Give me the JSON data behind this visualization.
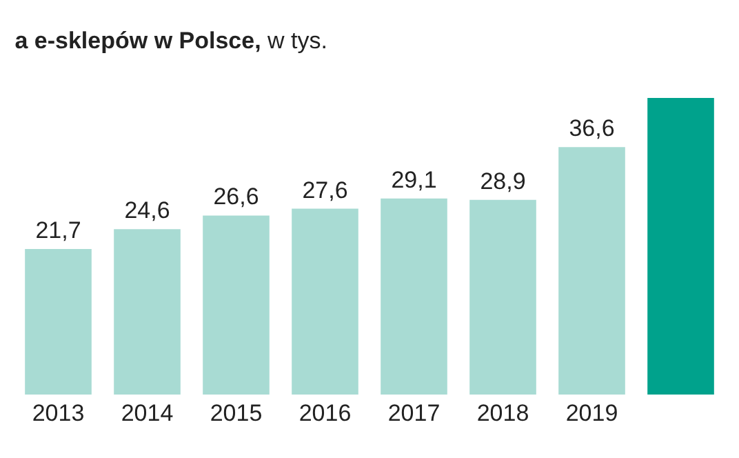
{
  "chart_data": {
    "type": "bar",
    "title": "a e-sklepów w Polsce,",
    "subtitle": "w tys.",
    "categories": [
      "2013",
      "2014",
      "2015",
      "2016",
      "2017",
      "2018",
      "2019",
      null
    ],
    "values": [
      21.7,
      24.6,
      26.6,
      27.6,
      29.1,
      28.9,
      36.6,
      43.8
    ],
    "colors": [
      "#a8dbd3",
      "#a8dbd3",
      "#a8dbd3",
      "#a8dbd3",
      "#a8dbd3",
      "#a8dbd3",
      "#a8dbd3",
      "#00a28c"
    ],
    "value_labels": [
      "21,7",
      "24,6",
      "26,6",
      "27,6",
      "29,1",
      "28,9",
      "36,6",
      null
    ],
    "tick_labels": "x",
    "grid": false,
    "legend": false
  }
}
